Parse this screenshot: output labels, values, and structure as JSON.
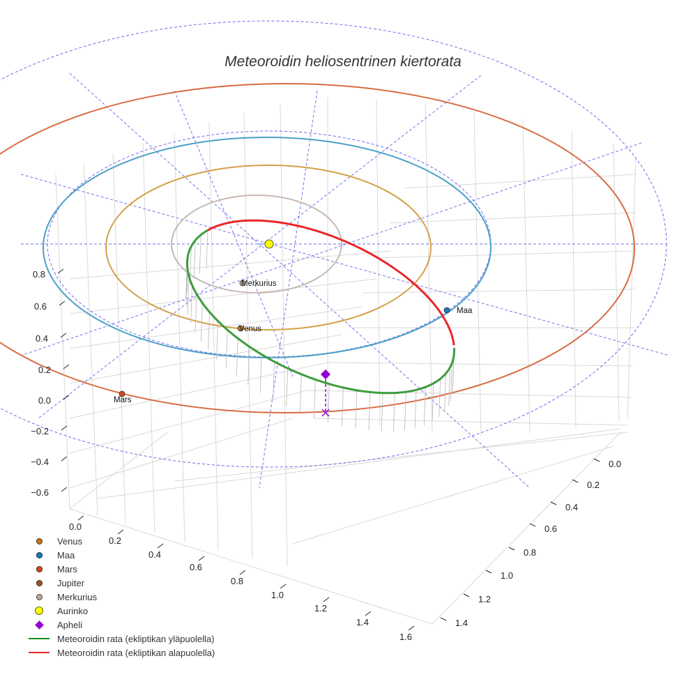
{
  "chart_data": {
    "type": "3d-line",
    "title": "Meteoroidin heliosentrinen kiertorata",
    "axes": {
      "x": {
        "ticks": [
          "0.0",
          "0.2",
          "0.4",
          "0.6",
          "0.8",
          "1.0",
          "1.2",
          "1.4",
          "1.6"
        ],
        "range": [
          0.0,
          1.6
        ]
      },
      "y": {
        "ticks": [
          "0.0",
          "0.2",
          "0.4",
          "0.6",
          "0.8",
          "1.0",
          "1.2",
          "1.4"
        ],
        "range": [
          0.0,
          1.4
        ]
      },
      "z": {
        "ticks": [
          "−0.6",
          "−0.4",
          "−0.2",
          "0.0",
          "0.2",
          "0.4",
          "0.6",
          "0.8"
        ],
        "range": [
          -0.6,
          0.8
        ]
      }
    },
    "planets": [
      {
        "name": "Merkurius",
        "label": "Merkurius",
        "orbit_radius_au": 0.39,
        "color": "#c8b8b2"
      },
      {
        "name": "Venus",
        "label": "Venus",
        "orbit_radius_au": 0.72,
        "color": "#d4a04a"
      },
      {
        "name": "Maa",
        "label": "Maa",
        "orbit_radius_au": 1.0,
        "color": "#4a9fc8"
      },
      {
        "name": "Mars",
        "label": "Mars",
        "orbit_radius_au": 1.52,
        "color": "#d96b40"
      }
    ],
    "sun": {
      "name": "Aurinko",
      "color": "#ffff00"
    },
    "aphelion": {
      "name": "Apheli",
      "color": "#9400d3"
    },
    "series": [
      {
        "name": "Meteoroidin rata (ekliptikan yläpuolella)",
        "color": "#3c9c3c"
      },
      {
        "name": "Meteoroidin rata (ekliptikan alapuolella)",
        "color": "#e8262a"
      }
    ],
    "legend": {
      "position": "bottom-left",
      "items": [
        {
          "label": "Venus",
          "type": "dot",
          "color": "#c8761e"
        },
        {
          "label": "Maa",
          "type": "dot",
          "color": "#1f77b4"
        },
        {
          "label": "Mars",
          "type": "dot",
          "color": "#d2461e"
        },
        {
          "label": "Jupiter",
          "type": "dot",
          "color": "#a0522d"
        },
        {
          "label": "Merkurius",
          "type": "dot",
          "color": "#bca8a0"
        },
        {
          "label": "Aurinko",
          "type": "bigdot",
          "color": "#ffff00"
        },
        {
          "label": "Apheli",
          "type": "diamond",
          "color": "#9400d3"
        },
        {
          "label": "Meteoroidin rata (ekliptikan yläpuolella)",
          "type": "line",
          "color": "#148c14"
        },
        {
          "label": "Meteoroidin rata (ekliptikan alapuolella)",
          "type": "line",
          "color": "#e8262a"
        }
      ]
    }
  }
}
